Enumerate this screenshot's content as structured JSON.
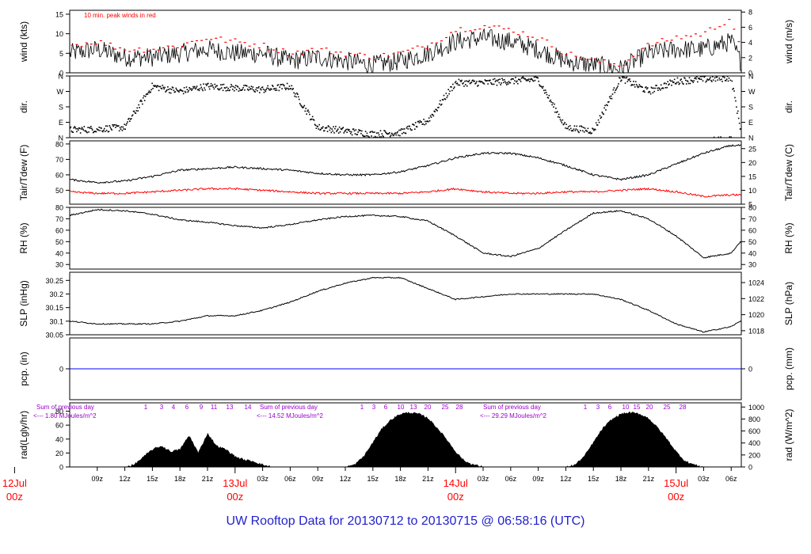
{
  "footer_title": "UW Rooftop Data for 20130712  to  20130715 @ 06:58:16  (UTC)",
  "colors": {
    "series": "#000000",
    "peak": "#ff0000",
    "dewpoint": "#ff0000",
    "precip": "#0000ff",
    "solar_note": "#9900cc",
    "date": "#ff0000",
    "title": "#1f1fd0"
  },
  "chart_data": [
    {
      "type": "line",
      "panel": "wind",
      "annotation": "10 min. peak winds in red",
      "ylabel": "wind (kts)",
      "ylabel_right": "wind (m/s)",
      "ylim": [
        0,
        16
      ],
      "yticks": [
        0,
        5,
        10,
        15
      ],
      "yticks_right": [
        {
          "value": 0,
          "label": "0"
        },
        {
          "value": 3.89,
          "label": "2"
        },
        {
          "value": 7.78,
          "label": "4"
        },
        {
          "value": 11.66,
          "label": "6"
        },
        {
          "value": 15.55,
          "label": "8"
        }
      ],
      "x_hours": [
        6,
        9,
        12,
        15,
        18,
        21,
        24,
        27,
        30,
        33,
        36,
        39,
        42,
        45,
        48,
        51,
        54,
        57,
        60,
        63,
        66,
        69,
        72,
        75,
        78,
        79
      ],
      "series": [
        {
          "role": "mean",
          "values": [
            5,
            6,
            4,
            4,
            5,
            6,
            5,
            5,
            3,
            4,
            3,
            2,
            3,
            5,
            8,
            9,
            8,
            6,
            3,
            2,
            1,
            5,
            6,
            6,
            8,
            3
          ]
        },
        {
          "role": "peak",
          "values": [
            7,
            8,
            6,
            6,
            7,
            9,
            8,
            7,
            5,
            6,
            5,
            4,
            5,
            7,
            11,
            12,
            11,
            9,
            5,
            3,
            2,
            7,
            9,
            10,
            14,
            6
          ]
        }
      ]
    },
    {
      "type": "scatter",
      "panel": "direction",
      "ylabel": "dir.",
      "ylabel_right": "dir.",
      "ylim": [
        0,
        360
      ],
      "yticks": [
        {
          "value": 0,
          "label": "N"
        },
        {
          "value": 90,
          "label": "E"
        },
        {
          "value": 180,
          "label": "S"
        },
        {
          "value": 270,
          "label": "W"
        },
        {
          "value": 360,
          "label": "N"
        }
      ],
      "x_hours": [
        6,
        9,
        12,
        15,
        18,
        21,
        24,
        27,
        30,
        33,
        36,
        39,
        42,
        45,
        48,
        51,
        54,
        57,
        60,
        63,
        66,
        69,
        72,
        75,
        78,
        79
      ],
      "values": [
        45,
        50,
        60,
        300,
        270,
        300,
        290,
        280,
        300,
        60,
        40,
        20,
        30,
        100,
        320,
        320,
        330,
        340,
        60,
        40,
        350,
        270,
        330,
        340,
        350,
        60
      ]
    },
    {
      "type": "line",
      "panel": "temperature",
      "ylabel": "Tair/Tdew (F)",
      "ylabel_right": "Tair/Tdew (C)",
      "ylim": [
        41,
        82
      ],
      "yticks": [
        50,
        60,
        70,
        80
      ],
      "yticks_right": [
        {
          "value": 41,
          "label": "5"
        },
        {
          "value": 50,
          "label": "10"
        },
        {
          "value": 59,
          "label": "15"
        },
        {
          "value": 68,
          "label": "20"
        },
        {
          "value": 77,
          "label": "25"
        }
      ],
      "x_hours": [
        6,
        9,
        12,
        15,
        18,
        21,
        24,
        27,
        30,
        33,
        36,
        39,
        42,
        45,
        48,
        51,
        54,
        57,
        60,
        63,
        66,
        69,
        72,
        75,
        78,
        79
      ],
      "series": [
        {
          "name": "Tair",
          "values": [
            57,
            55,
            56,
            59,
            63,
            64,
            65,
            64,
            63,
            61,
            60,
            60,
            62,
            66,
            71,
            74,
            74,
            71,
            66,
            60,
            57,
            60,
            67,
            74,
            79,
            79
          ]
        },
        {
          "name": "Tdew",
          "values": [
            49,
            48,
            48,
            49,
            50,
            51,
            51,
            50,
            49,
            48,
            48,
            48,
            48,
            49,
            51,
            49,
            48,
            48,
            49,
            49,
            50,
            51,
            49,
            46,
            47,
            47
          ]
        }
      ]
    },
    {
      "type": "line",
      "panel": "humidity",
      "ylabel": "RH (%)",
      "ylabel_right": "RH (%)",
      "ylim": [
        26,
        80
      ],
      "yticks": [
        30,
        40,
        50,
        60,
        70,
        80
      ],
      "x_hours": [
        6,
        9,
        12,
        15,
        18,
        21,
        24,
        27,
        30,
        33,
        36,
        39,
        42,
        45,
        48,
        51,
        54,
        57,
        60,
        63,
        66,
        69,
        72,
        75,
        78,
        79
      ],
      "values": [
        73,
        78,
        77,
        74,
        69,
        67,
        64,
        62,
        65,
        69,
        72,
        73,
        72,
        68,
        55,
        40,
        37,
        44,
        60,
        75,
        77,
        70,
        55,
        36,
        40,
        50
      ]
    },
    {
      "type": "line",
      "panel": "pressure",
      "ylabel": "SLP (inHg)",
      "ylabel_right": "SLP (hPa)",
      "ylim": [
        30.05,
        30.28
      ],
      "yticks": [
        30.05,
        30.1,
        30.15,
        30.2,
        30.25
      ],
      "yticks_right": [
        {
          "value": 30.065,
          "label": "1018"
        },
        {
          "value": 30.124,
          "label": "1020"
        },
        {
          "value": 30.183,
          "label": "1022"
        },
        {
          "value": 30.242,
          "label": "1024"
        }
      ],
      "x_hours": [
        6,
        9,
        12,
        15,
        18,
        21,
        24,
        27,
        30,
        33,
        36,
        39,
        42,
        45,
        48,
        51,
        54,
        57,
        60,
        63,
        66,
        69,
        72,
        75,
        78,
        79
      ],
      "values": [
        30.1,
        30.09,
        30.09,
        30.09,
        30.1,
        30.12,
        30.12,
        30.14,
        30.17,
        30.21,
        30.24,
        30.26,
        30.26,
        30.22,
        30.18,
        30.19,
        30.2,
        30.2,
        30.2,
        30.2,
        30.18,
        30.14,
        30.09,
        30.06,
        30.08,
        30.1
      ]
    },
    {
      "type": "line",
      "panel": "precipitation",
      "ylabel": "pcp. (in)",
      "ylabel_right": "pcp. (mm)",
      "yticks": [
        0
      ],
      "x_hours": [
        6,
        79
      ],
      "values": [
        0,
        0
      ]
    },
    {
      "type": "area",
      "panel": "radiation",
      "ylabel": "rad(Lgly/hr)",
      "ylabel_right": "rad (W/m^2)",
      "ylim": [
        0,
        92
      ],
      "yticks": [
        0,
        20,
        40,
        60,
        80
      ],
      "yticks_right": [
        {
          "value": 0,
          "label": "0"
        },
        {
          "value": 17.2,
          "label": "200"
        },
        {
          "value": 34.4,
          "label": "400"
        },
        {
          "value": 51.6,
          "label": "600"
        },
        {
          "value": 68.8,
          "label": "800"
        },
        {
          "value": 86,
          "label": "1000"
        }
      ],
      "notes": [
        {
          "line1": "Sum of previous day",
          "line2": "<--- 1.80 MJoules/m^2"
        },
        {
          "line1": "Sum of previous day",
          "line2": "<--- 14.52 MJoules/m^2"
        },
        {
          "line1": "Sum of previous day",
          "line2": "<--- 29.29 MJoules/m^2"
        }
      ],
      "hour_labels": [
        "1",
        "3",
        "4",
        "6",
        "9",
        "11",
        "13",
        "14",
        "1",
        "3",
        "6",
        "10",
        "13",
        "20",
        "25",
        "28",
        "1",
        "3",
        "6",
        "10",
        "15",
        "20",
        "25",
        "28"
      ],
      "x_hours": [
        6,
        12,
        13,
        14,
        15,
        16,
        17,
        18,
        19,
        20,
        21,
        22,
        23,
        24,
        25,
        26,
        27,
        28,
        29,
        30,
        36,
        37,
        38,
        39,
        40,
        41,
        42,
        43,
        44,
        45,
        46,
        47,
        48,
        49,
        50,
        51,
        52,
        53,
        54,
        60,
        61,
        62,
        63,
        64,
        65,
        66,
        67,
        68,
        69,
        70,
        71,
        72,
        73,
        74,
        75,
        76,
        77,
        78,
        79
      ],
      "values": [
        0,
        0,
        3,
        14,
        25,
        30,
        22,
        25,
        45,
        20,
        48,
        30,
        25,
        15,
        10,
        8,
        3,
        0,
        0,
        0,
        0,
        3,
        15,
        35,
        55,
        68,
        76,
        78,
        76,
        70,
        56,
        40,
        22,
        8,
        3,
        0,
        0,
        0,
        0,
        0,
        3,
        15,
        35,
        55,
        68,
        76,
        78,
        76,
        70,
        56,
        40,
        22,
        8,
        3,
        0,
        0,
        0,
        0,
        0
      ]
    }
  ],
  "x_axis": {
    "hour_ticks": [
      {
        "h": 9,
        "label": "09z"
      },
      {
        "h": 12,
        "label": "12z"
      },
      {
        "h": 15,
        "label": "15z"
      },
      {
        "h": 18,
        "label": "18z"
      },
      {
        "h": 21,
        "label": "21z"
      },
      {
        "h": 27,
        "label": "03z"
      },
      {
        "h": 30,
        "label": "06z"
      },
      {
        "h": 33,
        "label": "09z"
      },
      {
        "h": 36,
        "label": "12z"
      },
      {
        "h": 39,
        "label": "15z"
      },
      {
        "h": 42,
        "label": "18z"
      },
      {
        "h": 45,
        "label": "21z"
      },
      {
        "h": 51,
        "label": "03z"
      },
      {
        "h": 54,
        "label": "06z"
      },
      {
        "h": 57,
        "label": "09z"
      },
      {
        "h": 60,
        "label": "12z"
      },
      {
        "h": 63,
        "label": "15z"
      },
      {
        "h": 66,
        "label": "18z"
      },
      {
        "h": 69,
        "label": "21z"
      },
      {
        "h": 75,
        "label": "03z"
      },
      {
        "h": 78,
        "label": "06z"
      }
    ],
    "date_ticks": [
      {
        "h": 0,
        "day": "12Jul",
        "time": "00z"
      },
      {
        "h": 24,
        "day": "13Jul",
        "time": "00z"
      },
      {
        "h": 48,
        "day": "14Jul",
        "time": "00z"
      },
      {
        "h": 72,
        "day": "15Jul",
        "time": "00z"
      }
    ]
  }
}
